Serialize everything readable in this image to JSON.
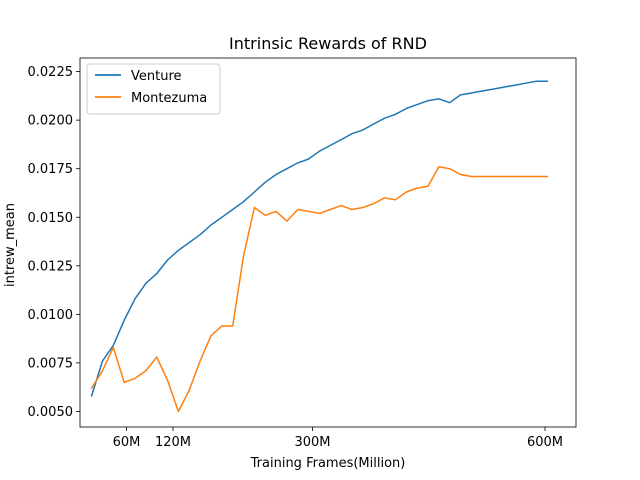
{
  "chart_data": {
    "type": "line",
    "title": "Intrinsic Rewards of RND",
    "xlabel": "Training Frames(Million)",
    "ylabel": "intrew_mean",
    "xlim": [
      0,
      640
    ],
    "ylim": [
      0.0042,
      0.0232
    ],
    "xticks": [
      {
        "value": 60,
        "label": "60M"
      },
      {
        "value": 120,
        "label": "120M"
      },
      {
        "value": 300,
        "label": "300M"
      },
      {
        "value": 600,
        "label": "600M"
      }
    ],
    "yticks": [
      {
        "value": 0.005,
        "label": "0.0050"
      },
      {
        "value": 0.0075,
        "label": "0.0075"
      },
      {
        "value": 0.01,
        "label": "0.0100"
      },
      {
        "value": 0.0125,
        "label": "0.0125"
      },
      {
        "value": 0.015,
        "label": "0.0150"
      },
      {
        "value": 0.0175,
        "label": "0.0175"
      },
      {
        "value": 0.02,
        "label": "0.0200"
      },
      {
        "value": 0.0225,
        "label": "0.0225"
      }
    ],
    "grid": false,
    "legend_position": "top-left",
    "series": [
      {
        "name": "Venture",
        "color": "#1f77b4",
        "x": [
          15,
          29,
          43,
          57,
          71,
          85,
          99,
          113,
          127,
          141,
          155,
          169,
          183,
          197,
          211,
          225,
          239,
          253,
          267,
          281,
          295,
          309,
          323,
          337,
          351,
          365,
          379,
          393,
          407,
          421,
          435,
          449,
          463,
          477,
          491,
          505,
          519,
          533,
          547,
          561,
          575,
          589,
          603
        ],
        "y": [
          0.0058,
          0.0076,
          0.0084,
          0.0097,
          0.0108,
          0.0116,
          0.0121,
          0.0128,
          0.0133,
          0.0137,
          0.0141,
          0.0146,
          0.015,
          0.0154,
          0.0158,
          0.0163,
          0.0168,
          0.0172,
          0.0175,
          0.0178,
          0.018,
          0.0184,
          0.0187,
          0.019,
          0.0193,
          0.0195,
          0.0198,
          0.0201,
          0.0203,
          0.0206,
          0.0208,
          0.021,
          0.0211,
          0.0209,
          0.0213,
          0.0214,
          0.0215,
          0.0216,
          0.0217,
          0.0218,
          0.0219,
          0.022,
          0.022
        ]
      },
      {
        "name": "Montezuma",
        "color": "#ff7f0e",
        "x": [
          15,
          29,
          43,
          57,
          71,
          85,
          99,
          113,
          127,
          141,
          155,
          169,
          183,
          197,
          211,
          225,
          239,
          253,
          267,
          281,
          295,
          309,
          323,
          337,
          351,
          365,
          379,
          393,
          407,
          421,
          435,
          449,
          463,
          477,
          491,
          505,
          519,
          533,
          547,
          561,
          575,
          589,
          603
        ],
        "y": [
          0.0062,
          0.0071,
          0.0083,
          0.0065,
          0.0067,
          0.0071,
          0.0078,
          0.0066,
          0.005,
          0.0061,
          0.0076,
          0.0089,
          0.0094,
          0.0094,
          0.013,
          0.0155,
          0.0151,
          0.0153,
          0.0148,
          0.0154,
          0.0153,
          0.0152,
          0.0154,
          0.0156,
          0.0154,
          0.0155,
          0.0157,
          0.016,
          0.0159,
          0.0163,
          0.0165,
          0.0166,
          0.0176,
          0.0175,
          0.0172,
          0.0171,
          0.0171,
          0.0171,
          0.0171,
          0.0171,
          0.0171,
          0.0171,
          0.0171
        ]
      }
    ]
  }
}
